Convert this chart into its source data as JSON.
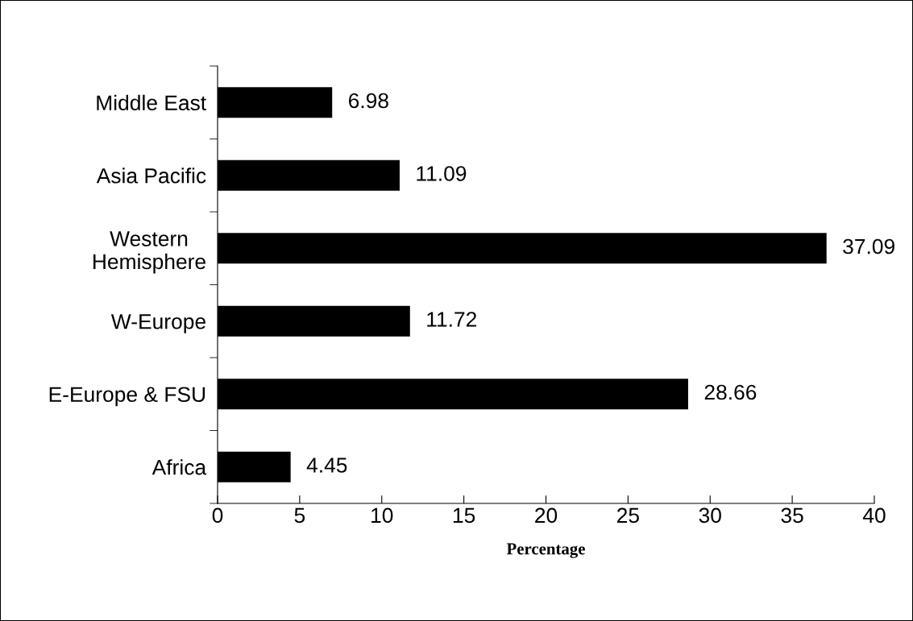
{
  "chart_data": {
    "type": "bar",
    "orientation": "horizontal",
    "xlabel": "Percentage",
    "categories": [
      "Middle East",
      "Asia Pacific",
      "Western\nHemisphere",
      "W-Europe",
      "E-Europe & FSU",
      "Africa"
    ],
    "values": [
      6.98,
      11.09,
      37.09,
      11.72,
      28.66,
      4.45
    ],
    "color": "#000000",
    "xlim": [
      0,
      40
    ],
    "xticks": [
      0,
      5,
      10,
      15,
      20,
      25,
      30,
      35,
      40
    ],
    "data_labels": true,
    "grid": false,
    "legend": false
  }
}
